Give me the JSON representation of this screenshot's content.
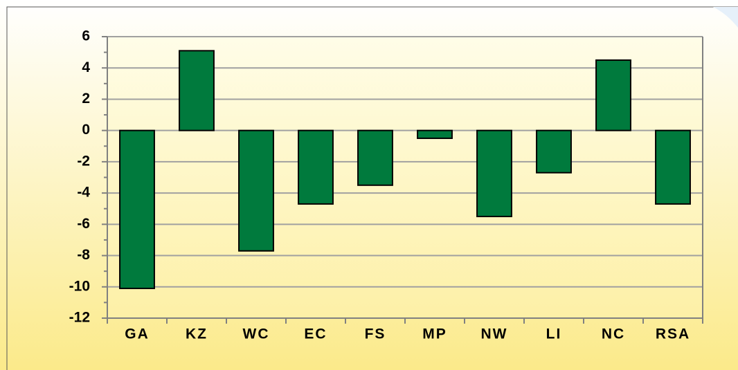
{
  "chart_data": {
    "type": "bar",
    "categories": [
      "GA",
      "KZ",
      "WC",
      "EC",
      "FS",
      "MP",
      "NW",
      "LI",
      "NC",
      "RSA"
    ],
    "values": [
      -10.1,
      5.1,
      -7.7,
      -4.7,
      -3.5,
      -0.5,
      -5.5,
      -2.7,
      4.5,
      -4.7
    ],
    "color": "#007a3d",
    "ylim": [
      -12,
      6
    ],
    "yticks": [
      -12,
      -10,
      -8,
      -6,
      -4,
      -2,
      0,
      2,
      4,
      6
    ],
    "grid": true
  }
}
